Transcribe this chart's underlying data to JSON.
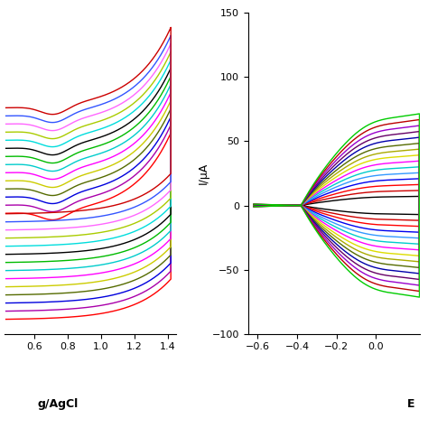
{
  "left_xlim": [
    0.42,
    1.45
  ],
  "left_xticks": [
    0.6,
    0.8,
    1.0,
    1.2,
    1.4
  ],
  "right_xlim": [
    -0.65,
    0.22
  ],
  "right_xticks": [
    -0.6,
    -0.4,
    -0.2,
    0.0
  ],
  "right_ylim": [
    -100,
    150
  ],
  "right_yticks": [
    -100,
    -50,
    0,
    50,
    100,
    150
  ],
  "right_ylabel": "I/μA",
  "background": "#FFFFFF",
  "lw": 1.0,
  "colors_left": [
    "#FF0000",
    "#AA00AA",
    "#0000DD",
    "#556B00",
    "#CCCC00",
    "#FF00FF",
    "#00CCCC",
    "#00BB00",
    "#000000",
    "#00DDDD",
    "#AACC00",
    "#FF66FF",
    "#3355FF",
    "#CC0000"
  ],
  "colors_right": [
    "#000000",
    "#CC0000",
    "#FF0000",
    "#0000EE",
    "#3399FF",
    "#00CCCC",
    "#FF00FF",
    "#DDDD00",
    "#AAAA00",
    "#556B00",
    "#0000AA",
    "#660066",
    "#9900CC",
    "#BB0000",
    "#00CC00"
  ]
}
